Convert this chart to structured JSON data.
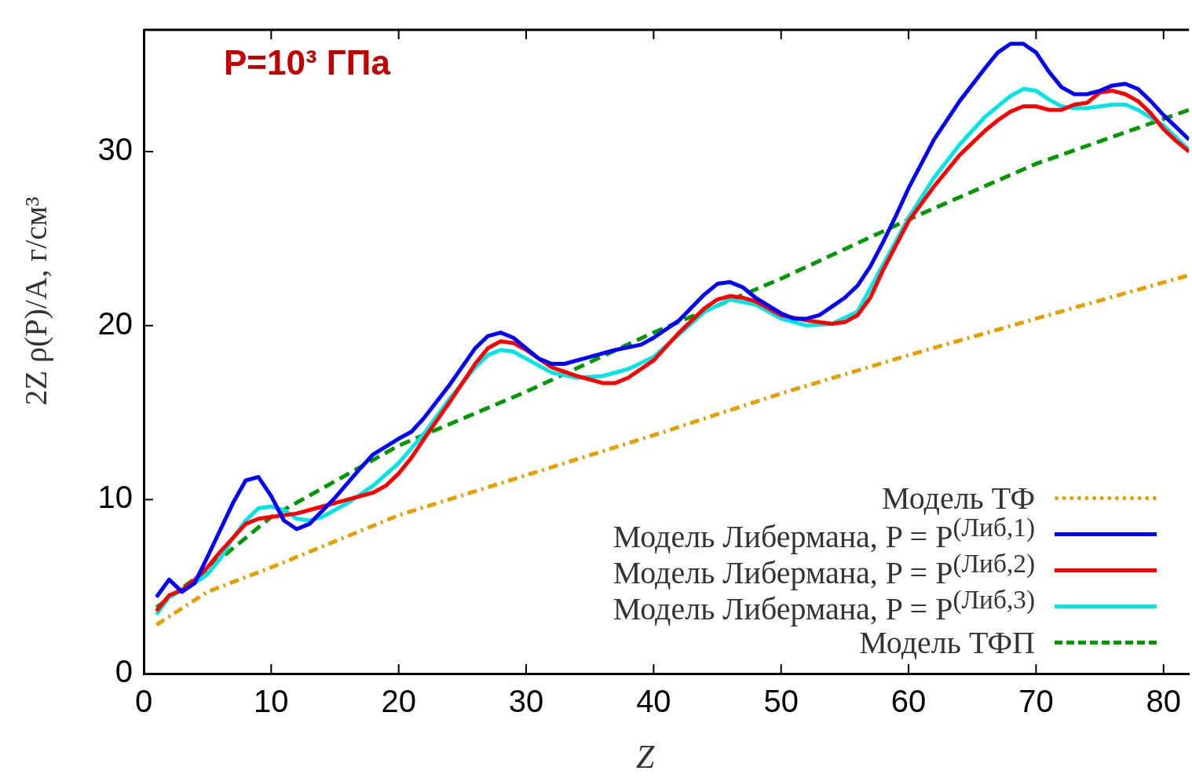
{
  "chart_data": {
    "type": "line",
    "xlabel": "Z",
    "ylabel": "2Z ρ(P)/A, г/см³",
    "annotations": [
      "P=10³ ГПа"
    ],
    "xlim": [
      0,
      82
    ],
    "xticks": [
      0,
      10,
      20,
      30,
      40,
      50,
      60,
      70,
      80
    ],
    "ylim": [
      0,
      37
    ],
    "yticks": [
      0,
      10,
      20,
      30
    ],
    "grid": false,
    "legend": "bottom right",
    "marker": "none",
    "series": [
      {
        "name": "Модель ТФ",
        "color": "#e69f00",
        "line_style": "dotted",
        "x": [
          1,
          5,
          10,
          20,
          30,
          40,
          50,
          60,
          70,
          82
        ],
        "values": [
          2.8,
          4.7,
          6.1,
          9.1,
          11.4,
          13.7,
          16.1,
          18.3,
          20.4,
          22.9
        ]
      },
      {
        "name": "Модель Либермана, P = P$^{(Либ,1)}$",
        "color": "#0000ff",
        "line_style": "solid",
        "x": [
          1,
          2,
          3,
          4,
          5,
          7,
          8,
          9,
          10,
          11,
          12,
          13,
          15,
          17,
          18,
          20,
          21,
          22,
          24,
          26,
          27,
          28,
          29,
          30,
          31,
          32,
          33,
          35,
          37,
          39,
          40,
          42,
          44,
          45,
          46,
          47,
          48,
          50,
          51,
          52,
          53,
          54,
          55,
          56,
          57,
          58,
          59,
          60,
          62,
          64,
          66,
          67,
          68,
          69,
          70,
          71,
          72,
          73,
          74,
          75,
          76,
          77,
          78,
          79,
          80,
          81,
          82
        ],
        "values": [
          4.4,
          5.4,
          4.7,
          5.2,
          6.7,
          9.8,
          11.1,
          11.3,
          10.2,
          8.8,
          8.3,
          8.6,
          10.1,
          11.8,
          12.6,
          13.5,
          13.9,
          14.7,
          16.6,
          18.7,
          19.4,
          19.6,
          19.3,
          18.7,
          18.1,
          17.8,
          17.8,
          18.2,
          18.6,
          18.9,
          19.3,
          20.3,
          21.8,
          22.4,
          22.5,
          22.2,
          21.6,
          20.7,
          20.4,
          20.4,
          20.6,
          21.1,
          21.6,
          22.3,
          23.4,
          24.8,
          26.3,
          27.9,
          30.7,
          32.9,
          34.8,
          35.7,
          36.2,
          36.2,
          35.7,
          34.6,
          33.7,
          33.3,
          33.3,
          33.5,
          33.8,
          33.9,
          33.6,
          32.9,
          32.1,
          31.4,
          30.7
        ]
      },
      {
        "name": "Модель Либермана, P = P$^{(Либ,2)}$",
        "color": "#ff0000",
        "line_style": "solid",
        "x": [
          1,
          2,
          3,
          4,
          5,
          6,
          7,
          8,
          9,
          10,
          12,
          14,
          16,
          18,
          19,
          20,
          21,
          22,
          24,
          26,
          27,
          28,
          29,
          30,
          32,
          34,
          36,
          37,
          38,
          40,
          42,
          44,
          45,
          46,
          47,
          48,
          50,
          52,
          54,
          55,
          56,
          57,
          58,
          60,
          62,
          64,
          66,
          67,
          68,
          69,
          70,
          71,
          72,
          73,
          74,
          75,
          76,
          77,
          78,
          79,
          80,
          81,
          82
        ],
        "values": [
          3.6,
          4.5,
          4.8,
          5.4,
          6.1,
          7.0,
          7.8,
          8.6,
          8.9,
          9.0,
          9.2,
          9.6,
          10.0,
          10.4,
          10.8,
          11.5,
          12.4,
          13.5,
          15.6,
          17.8,
          18.7,
          19.1,
          19.0,
          18.6,
          17.6,
          17.1,
          16.7,
          16.7,
          17.0,
          18.0,
          19.6,
          21.0,
          21.5,
          21.7,
          21.6,
          21.4,
          20.6,
          20.3,
          20.1,
          20.2,
          20.6,
          21.6,
          23.2,
          26.0,
          28.0,
          29.8,
          31.2,
          31.8,
          32.3,
          32.6,
          32.6,
          32.4,
          32.4,
          32.7,
          32.8,
          33.4,
          33.5,
          33.3,
          32.9,
          32.2,
          31.3,
          30.6,
          30.0
        ]
      },
      {
        "name": "Модель Либермана, P = P$^{(Либ,3)}$",
        "color": "#00e5e5",
        "line_style": "solid",
        "x": [
          1,
          2,
          3,
          4,
          5,
          6,
          7,
          8,
          9,
          10,
          11,
          12,
          13,
          14,
          16,
          18,
          20,
          22,
          24,
          26,
          27,
          28,
          29,
          30,
          32,
          34,
          36,
          38,
          40,
          42,
          44,
          46,
          48,
          50,
          52,
          54,
          56,
          58,
          60,
          62,
          64,
          66,
          68,
          69,
          70,
          71,
          72,
          73,
          74,
          76,
          77,
          78,
          80,
          82
        ],
        "values": [
          3.4,
          4.4,
          4.8,
          5.2,
          5.7,
          6.6,
          7.8,
          8.8,
          9.5,
          9.6,
          9.4,
          8.9,
          8.8,
          9.0,
          9.8,
          10.8,
          12.1,
          13.8,
          15.8,
          17.6,
          18.3,
          18.6,
          18.5,
          18.1,
          17.3,
          17.0,
          17.1,
          17.5,
          18.2,
          19.5,
          20.8,
          21.5,
          21.2,
          20.4,
          20.0,
          20.1,
          20.8,
          23.5,
          26.2,
          28.5,
          30.4,
          32.0,
          33.2,
          33.6,
          33.5,
          33.0,
          32.6,
          32.5,
          32.5,
          32.7,
          32.7,
          32.4,
          31.5,
          30.1
        ]
      },
      {
        "name": "Модель ТФП",
        "color": "#009900",
        "line_style": "dashed",
        "x": [
          1,
          5,
          10,
          20,
          30,
          40,
          50,
          60,
          70,
          82
        ],
        "values": [
          3.8,
          6.0,
          9.0,
          13.1,
          16.2,
          19.6,
          22.7,
          26.1,
          29.3,
          32.4
        ]
      }
    ]
  }
}
